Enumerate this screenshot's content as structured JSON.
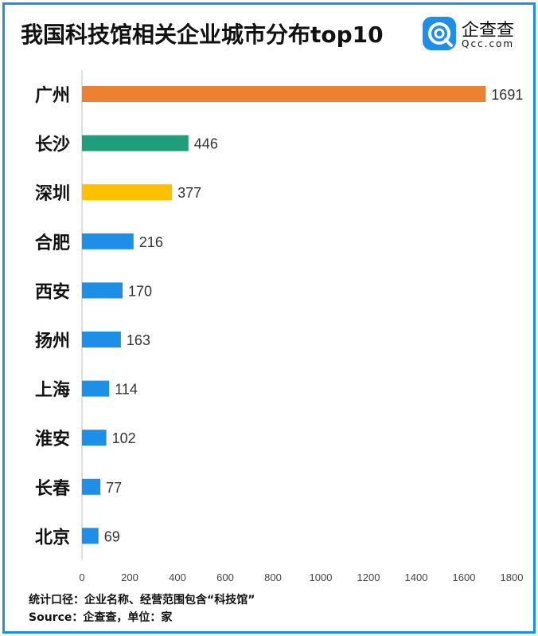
{
  "title": "我国科技馆相关企业城市分布top10",
  "brand": {
    "name_cn": "企查查",
    "name_en": "Qcc.com"
  },
  "colors": {
    "frame": "#1e8fe6"
  },
  "footnotes": {
    "line1": "统计口径：企业名称、经营范围包含“科技馆”",
    "line2": "Source：企查查，单位：家"
  },
  "chart_data": {
    "type": "bar",
    "orientation": "horizontal",
    "categories": [
      "广州",
      "长沙",
      "深圳",
      "合肥",
      "西安",
      "扬州",
      "上海",
      "淮安",
      "长春",
      "北京"
    ],
    "values": [
      1691,
      446,
      377,
      216,
      170,
      163,
      114,
      102,
      77,
      69
    ],
    "bar_colors": [
      "#ee8033",
      "#1e9e7a",
      "#ffc000",
      "#1e8fe6",
      "#1e8fe6",
      "#1e8fe6",
      "#1e8fe6",
      "#1e8fe6",
      "#1e8fe6",
      "#1e8fe6"
    ],
    "xlim": [
      0,
      1800
    ],
    "xticks": [
      0,
      200,
      400,
      600,
      800,
      1000,
      1200,
      1400,
      1600,
      1800
    ],
    "grid": false,
    "data_labels": true
  }
}
